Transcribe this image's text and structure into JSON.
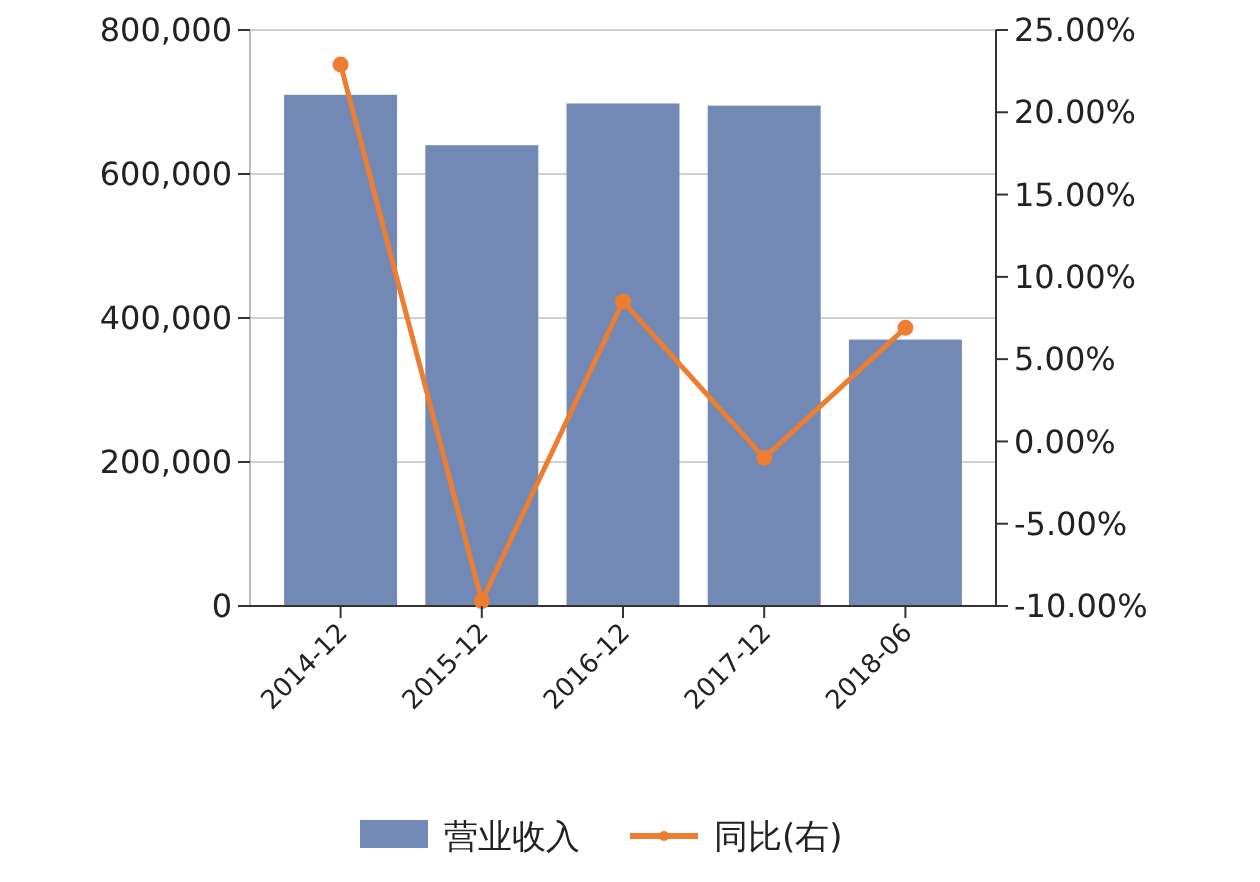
{
  "chart_data": {
    "type": "bar",
    "categories": [
      "2014-12",
      "2015-12",
      "2016-12",
      "2017-12",
      "2018-06"
    ],
    "series": [
      {
        "name": "营业收入",
        "color": "#7189b4",
        "values": [
          710000,
          640000,
          698000,
          695000,
          370000
        ]
      },
      {
        "name": "同比(右)",
        "type": "line",
        "axis": "y2",
        "color": "#ed7d31",
        "marker": "circle",
        "values": [
          22.9,
          -9.7,
          8.5,
          -1.0,
          6.9
        ]
      }
    ],
    "ylim": [
      0,
      800000
    ],
    "yticks": [
      {
        "value": 0,
        "label": "0"
      },
      {
        "value": 200000,
        "label": "200,000"
      },
      {
        "value": 400000,
        "label": "400,000"
      },
      {
        "value": 600000,
        "label": "600,000"
      },
      {
        "value": 800000,
        "label": "800,000"
      }
    ],
    "y2lim": [
      -10,
      25
    ],
    "y2ticks": [
      {
        "value": -10,
        "label": "-10.00%"
      },
      {
        "value": -5,
        "label": "-5.00%"
      },
      {
        "value": 0,
        "label": "0.00%"
      },
      {
        "value": 5,
        "label": "5.00%"
      },
      {
        "value": 10,
        "label": "10.00%"
      },
      {
        "value": 15,
        "label": "15.00%"
      },
      {
        "value": 20,
        "label": "20.00%"
      },
      {
        "value": 25,
        "label": "25.00%"
      }
    ],
    "grid": "y",
    "legend": "bottom"
  }
}
